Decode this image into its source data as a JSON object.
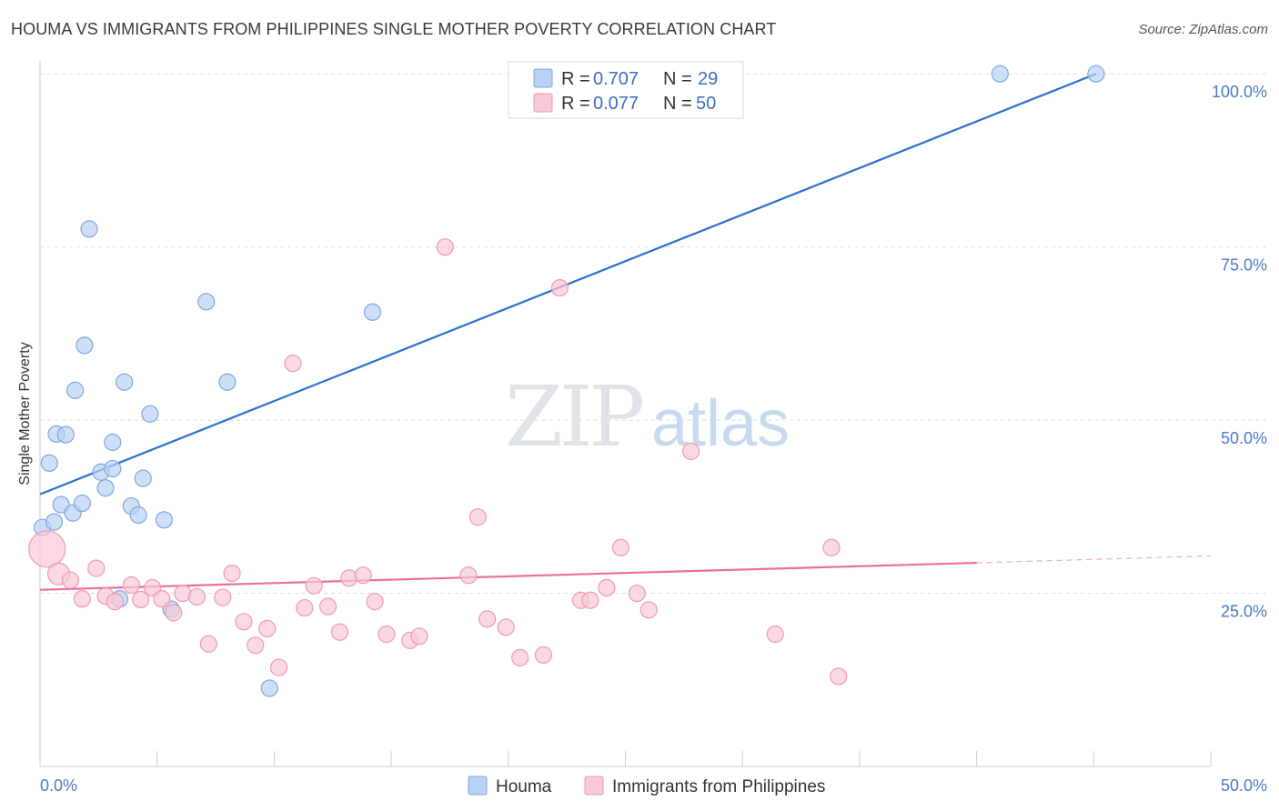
{
  "title": "HOUMA VS IMMIGRANTS FROM PHILIPPINES SINGLE MOTHER POVERTY CORRELATION CHART",
  "source": "Source: ZipAtlas.com",
  "watermark": {
    "zip": "ZIP",
    "atlas": "atlas"
  },
  "colors": {
    "houma_fill": "#b9d2f3",
    "houma_stroke": "#7ea7e0",
    "houma_line": "#2a6fd0",
    "phil_fill": "#f8c9d6",
    "phil_stroke": "#ee9ab3",
    "phil_line": "#e8709a",
    "tick_text": "#4a7bc8",
    "grid": "#d8dde6"
  },
  "chart_data": {
    "type": "scatter",
    "title": "HOUMA VS IMMIGRANTS FROM PHILIPPINES SINGLE MOTHER POVERTY CORRELATION CHART",
    "xlabel": "",
    "ylabel": "Single Mother Poverty",
    "xlim": [
      0,
      50
    ],
    "ylim": [
      0,
      102
    ],
    "x_tick_labels": [
      "0.0%",
      "50.0%"
    ],
    "y_ticks": [
      25,
      50,
      75,
      100
    ],
    "y_tick_labels": [
      "25.0%",
      "50.0%",
      "75.0%",
      "100.0%"
    ],
    "grid": true,
    "legend_top": [
      {
        "r_label": "R =",
        "r_value": "0.707",
        "n_label": "N =",
        "n_value": "29"
      },
      {
        "r_label": "R =",
        "r_value": "0.077",
        "n_label": "N =",
        "n_value": "50"
      }
    ],
    "series": [
      {
        "name": "Houma",
        "points": [
          [
            0.1,
            34.5
          ],
          [
            0.4,
            43.8
          ],
          [
            0.6,
            35.3
          ],
          [
            0.7,
            48
          ],
          [
            0.9,
            37.8
          ],
          [
            1.1,
            47.9
          ],
          [
            1.4,
            36.6
          ],
          [
            1.5,
            54.3
          ],
          [
            1.8,
            38
          ],
          [
            1.9,
            60.8
          ],
          [
            2.1,
            77.6
          ],
          [
            2.6,
            42.5
          ],
          [
            2.8,
            40.2
          ],
          [
            3.1,
            43
          ],
          [
            3.1,
            46.8
          ],
          [
            3.4,
            24.2
          ],
          [
            3.6,
            55.5
          ],
          [
            3.9,
            37.6
          ],
          [
            4.2,
            36.3
          ],
          [
            4.4,
            41.6
          ],
          [
            4.7,
            50.9
          ],
          [
            5.3,
            35.6
          ],
          [
            5.6,
            22.7
          ],
          [
            7.1,
            67.1
          ],
          [
            8.0,
            55.5
          ],
          [
            9.8,
            11.3
          ],
          [
            14.2,
            65.6
          ],
          [
            41.0,
            100
          ],
          [
            45.1,
            100
          ]
        ],
        "regression": {
          "x": [
            0,
            45.1
          ],
          "y": [
            39.3,
            100
          ]
        }
      },
      {
        "name": "Immigrants from Philippines",
        "points": [
          [
            0.3,
            31.4
          ],
          [
            0.8,
            27.8
          ],
          [
            1.3,
            26.9
          ],
          [
            1.8,
            24.2
          ],
          [
            2.4,
            28.6
          ],
          [
            2.8,
            24.6
          ],
          [
            3.2,
            23.8
          ],
          [
            3.9,
            26.2
          ],
          [
            4.3,
            24.1
          ],
          [
            4.8,
            25.8
          ],
          [
            5.2,
            24.2
          ],
          [
            5.7,
            22.2
          ],
          [
            6.1,
            25
          ],
          [
            6.7,
            24.5
          ],
          [
            7.2,
            17.7
          ],
          [
            7.8,
            24.4
          ],
          [
            8.2,
            27.9
          ],
          [
            8.7,
            20.9
          ],
          [
            9.2,
            17.5
          ],
          [
            9.7,
            19.9
          ],
          [
            10.2,
            14.3
          ],
          [
            10.8,
            58.2
          ],
          [
            11.3,
            22.9
          ],
          [
            11.7,
            26.1
          ],
          [
            12.3,
            23.1
          ],
          [
            12.8,
            19.4
          ],
          [
            13.2,
            27.2
          ],
          [
            13.8,
            27.6
          ],
          [
            14.3,
            23.8
          ],
          [
            14.8,
            19.1
          ],
          [
            15.8,
            18.2
          ],
          [
            16.2,
            18.8
          ],
          [
            17.3,
            75
          ],
          [
            18.3,
            27.6
          ],
          [
            18.7,
            36
          ],
          [
            19.1,
            21.3
          ],
          [
            19.9,
            20.1
          ],
          [
            20.5,
            15.7
          ],
          [
            21.5,
            16.1
          ],
          [
            22.2,
            69.1
          ],
          [
            23.1,
            24
          ],
          [
            23.5,
            24
          ],
          [
            24.2,
            25.8
          ],
          [
            24.8,
            31.6
          ],
          [
            25.5,
            25
          ],
          [
            26,
            22.6
          ],
          [
            27.8,
            45.5
          ],
          [
            31.4,
            19.1
          ],
          [
            33.8,
            31.6
          ],
          [
            34.1,
            13
          ]
        ],
        "regression": {
          "x": [
            0,
            40
          ],
          "y": [
            25.5,
            29.4
          ]
        },
        "regression_dashed": {
          "x": [
            40,
            50
          ],
          "y": [
            29.4,
            30.4
          ]
        }
      }
    ]
  },
  "bottom_legend": [
    "Houma",
    "Immigrants from Philippines"
  ]
}
